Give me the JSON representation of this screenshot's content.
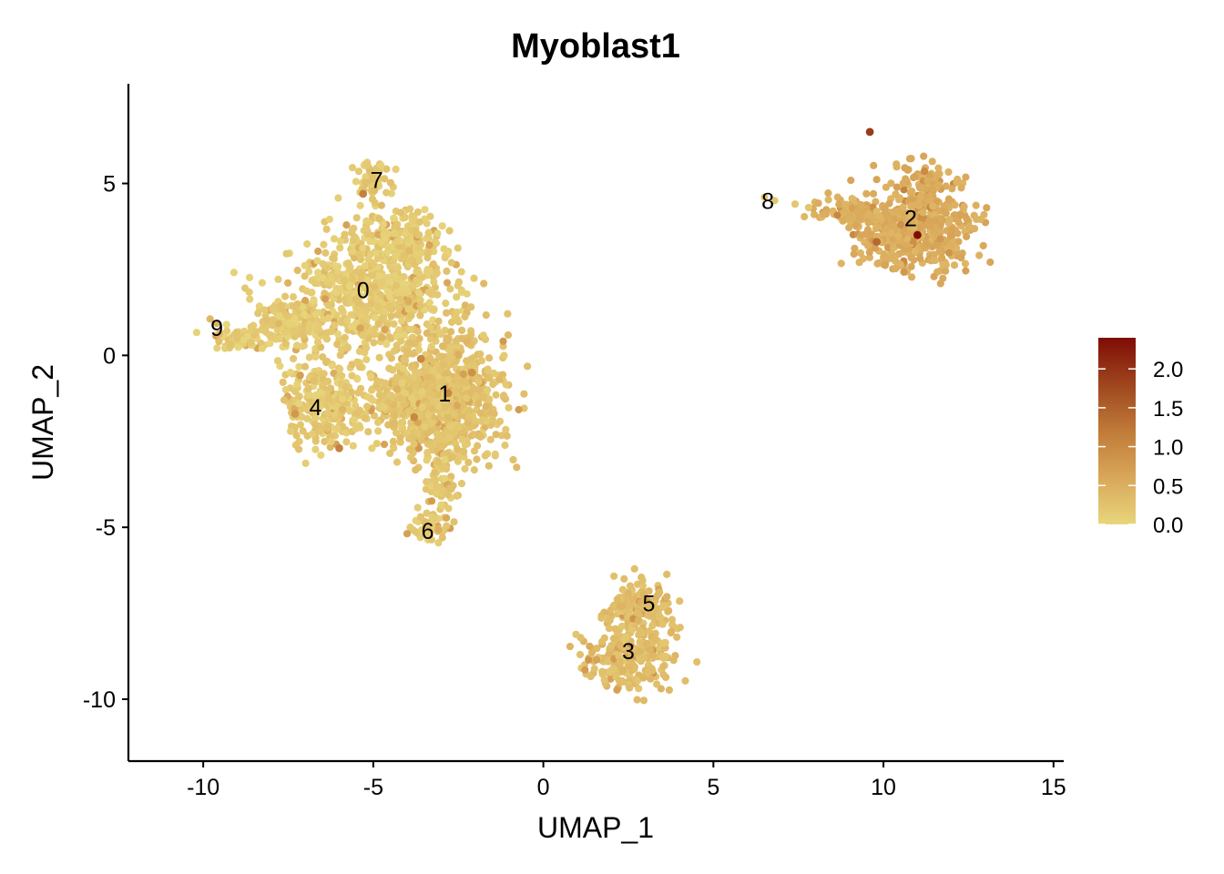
{
  "chart_data": {
    "type": "scatter",
    "title": "Myoblast1",
    "xlabel": "UMAP_1",
    "ylabel": "UMAP_2",
    "xlim": [
      -12.2,
      15.3
    ],
    "ylim": [
      -11.8,
      7.9
    ],
    "x_ticks": [
      -10,
      -5,
      0,
      5,
      10,
      15
    ],
    "x_tick_labels": [
      "-10",
      "-5",
      "0",
      "5",
      "10",
      "15"
    ],
    "y_ticks": [
      -10,
      -5,
      0,
      5
    ],
    "y_tick_labels": [
      "-10",
      "-5",
      "0",
      "5"
    ],
    "grid": false,
    "legend": {
      "position": "right",
      "type": "colorbar",
      "min": 0.0,
      "max": 2.4,
      "ticks": [
        0.0,
        0.5,
        1.0,
        1.5,
        2.0
      ],
      "tick_labels": [
        "0.0",
        "0.5",
        "1.0",
        "1.5",
        "2.0"
      ],
      "colors": [
        "#E8D67B",
        "#D9A75A",
        "#C07A38",
        "#9E461E",
        "#7F0C05"
      ]
    },
    "clusters": [
      {
        "label": "0",
        "x": -5.3,
        "y": 1.9
      },
      {
        "label": "1",
        "x": -2.9,
        "y": -1.1
      },
      {
        "label": "2",
        "x": 10.8,
        "y": 4.0
      },
      {
        "label": "3",
        "x": 2.5,
        "y": -8.6
      },
      {
        "label": "4",
        "x": -6.7,
        "y": -1.5
      },
      {
        "label": "5",
        "x": 3.1,
        "y": -7.2
      },
      {
        "label": "6",
        "x": -3.4,
        "y": -5.1
      },
      {
        "label": "7",
        "x": -4.9,
        "y": 5.1
      },
      {
        "label": "8",
        "x": 6.6,
        "y": 4.5
      },
      {
        "label": "9",
        "x": -9.6,
        "y": 0.8
      }
    ],
    "highlight_points": [
      {
        "x": 11.0,
        "y": 3.5,
        "value": 2.4
      },
      {
        "x": 9.6,
        "y": 6.5,
        "value": 1.9
      },
      {
        "x": 9.8,
        "y": 3.3,
        "value": 1.4
      },
      {
        "x": -5.3,
        "y": 4.7,
        "value": 1.1
      },
      {
        "x": -6.0,
        "y": -2.7,
        "value": 1.1
      },
      {
        "x": -3.6,
        "y": -0.1,
        "value": 1.0
      },
      {
        "x": -2.8,
        "y": -1.1,
        "value": 1.0
      },
      {
        "x": -3.8,
        "y": -1.8,
        "value": 1.0
      },
      {
        "x": -2.1,
        "y": -0.5,
        "value": 0.9
      },
      {
        "x": -7.3,
        "y": -1.7,
        "value": 0.8
      }
    ]
  }
}
